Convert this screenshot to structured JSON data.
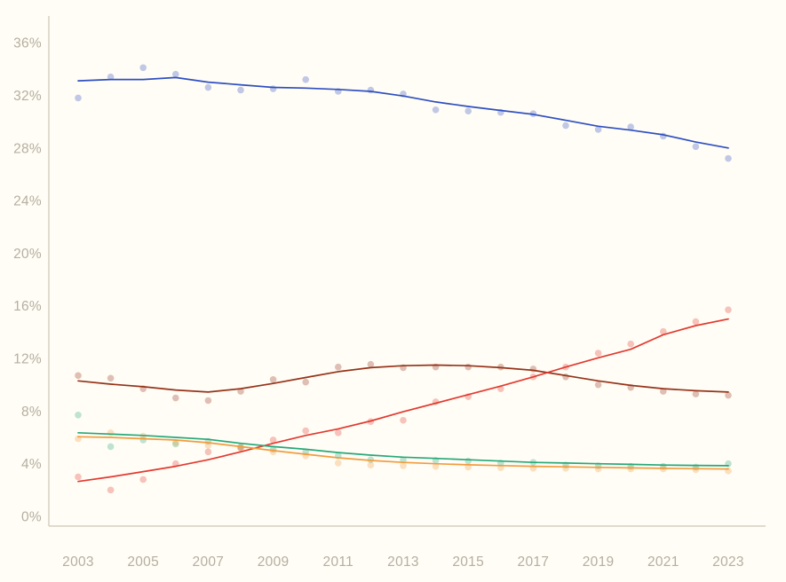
{
  "chart_data": {
    "type": "scatter",
    "title": "",
    "subtitle": "",
    "xlabel": "",
    "ylabel": "",
    "grid": false,
    "legend_position": "none",
    "x_years": [
      2003,
      2004,
      2005,
      2006,
      2007,
      2008,
      2009,
      2010,
      2011,
      2012,
      2013,
      2014,
      2015,
      2016,
      2017,
      2018,
      2019,
      2020,
      2021,
      2022,
      2023
    ],
    "x_tick_labels": [
      "2003",
      "2005",
      "2007",
      "2009",
      "2011",
      "2013",
      "2015",
      "2017",
      "2019",
      "2021",
      "2023"
    ],
    "x_tick_years": [
      2003,
      2005,
      2007,
      2009,
      2011,
      2013,
      2015,
      2017,
      2019,
      2021,
      2023
    ],
    "y_tick_labels": [
      "0%",
      "4%",
      "8%",
      "12%",
      "16%",
      "20%",
      "24%",
      "28%",
      "32%",
      "36%"
    ],
    "y_ticks_percent": [
      0,
      4,
      8,
      12,
      16,
      20,
      24,
      28,
      32,
      36
    ],
    "xlim": [
      2003,
      2023
    ],
    "ylim": [
      0,
      37.5
    ],
    "series": [
      {
        "name": "blue-series",
        "color": "#2f4fc1",
        "dots": [
          31.8,
          33.4,
          34.1,
          33.6,
          32.6,
          32.4,
          32.5,
          33.2,
          32.3,
          32.4,
          32.1,
          30.9,
          30.8,
          30.7,
          30.6,
          29.7,
          29.4,
          29.6,
          28.9,
          28.1,
          27.2
        ],
        "trend": [
          33.1,
          33.2,
          33.2,
          33.35,
          33.0,
          32.8,
          32.6,
          32.55,
          32.45,
          32.3,
          31.95,
          31.5,
          31.15,
          30.85,
          30.55,
          30.1,
          29.65,
          29.35,
          29.0,
          28.45,
          28.0
        ]
      },
      {
        "name": "dark-red-series",
        "color": "#96331a",
        "dots": [
          10.7,
          10.5,
          9.7,
          9.0,
          8.8,
          9.5,
          10.4,
          10.2,
          11.35,
          11.55,
          11.3,
          11.35,
          11.35,
          11.35,
          11.2,
          10.6,
          10.0,
          9.8,
          9.5,
          9.3,
          9.2
        ],
        "trend": [
          10.3,
          10.05,
          9.85,
          9.6,
          9.45,
          9.7,
          10.1,
          10.55,
          11.0,
          11.3,
          11.45,
          11.5,
          11.45,
          11.3,
          11.1,
          10.7,
          10.3,
          9.95,
          9.7,
          9.55,
          9.45
        ]
      },
      {
        "name": "red-series",
        "color": "#e23a31",
        "dots": [
          3.0,
          2.0,
          2.8,
          4.0,
          4.9,
          5.2,
          5.8,
          6.5,
          6.35,
          7.2,
          7.3,
          8.7,
          9.1,
          9.7,
          10.6,
          11.35,
          12.4,
          13.1,
          14.05,
          14.8,
          15.7
        ],
        "trend": [
          2.65,
          3.0,
          3.4,
          3.8,
          4.3,
          4.9,
          5.55,
          6.15,
          6.65,
          7.25,
          7.95,
          8.6,
          9.25,
          9.9,
          10.6,
          11.35,
          12.05,
          12.7,
          13.8,
          14.5,
          15.0
        ]
      },
      {
        "name": "green-series",
        "color": "#27a879",
        "dots": [
          7.7,
          5.3,
          5.8,
          5.5,
          5.7,
          5.3,
          5.1,
          4.9,
          4.6,
          4.3,
          4.3,
          4.25,
          4.2,
          4.05,
          4.1,
          3.9,
          3.85,
          3.8,
          3.8,
          3.75,
          4.0
        ],
        "trend": [
          6.35,
          6.25,
          6.15,
          6.0,
          5.85,
          5.55,
          5.3,
          5.1,
          4.85,
          4.65,
          4.5,
          4.4,
          4.3,
          4.2,
          4.1,
          4.05,
          4.0,
          3.95,
          3.9,
          3.87,
          3.85
        ]
      },
      {
        "name": "orange-series",
        "color": "#f29c3e",
        "dots": [
          5.9,
          6.35,
          6.1,
          5.6,
          5.4,
          5.2,
          4.9,
          4.6,
          4.05,
          3.9,
          3.85,
          3.8,
          3.75,
          3.7,
          3.65,
          3.65,
          3.6,
          3.6,
          3.6,
          3.55,
          3.45
        ],
        "trend": [
          6.05,
          6.0,
          5.9,
          5.8,
          5.6,
          5.3,
          5.0,
          4.72,
          4.45,
          4.25,
          4.1,
          4.0,
          3.92,
          3.86,
          3.8,
          3.76,
          3.72,
          3.68,
          3.65,
          3.62,
          3.6
        ]
      }
    ]
  },
  "style": {
    "background_color": "#fffdf5",
    "axis_line_color": "#ccc7b6",
    "tick_label_color": "#b6afa2",
    "dot_opacity": 0.3
  }
}
